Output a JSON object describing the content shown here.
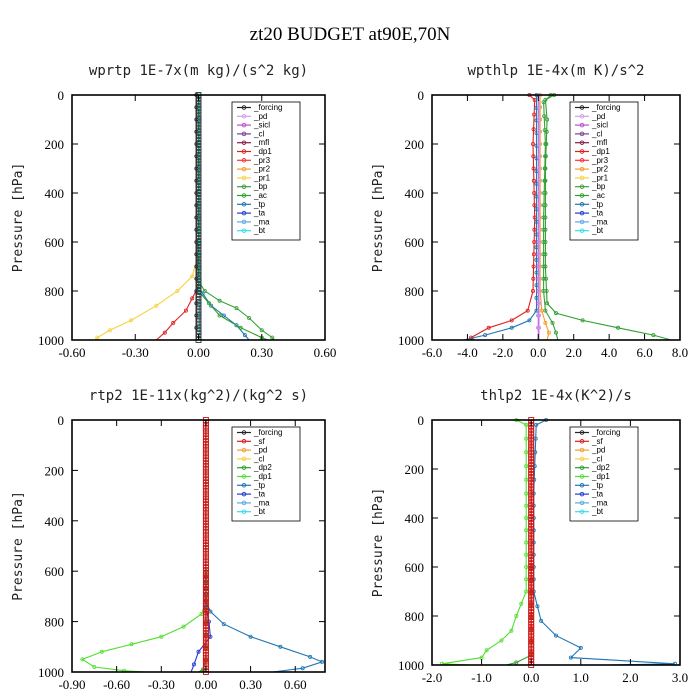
{
  "figure_title": "zt20  BUDGET at90E,70N",
  "colors": {
    "forcing": "#222222",
    "pd": "#d4a0e8",
    "sicl": "#b94fd0",
    "cl": "#7a3e9a",
    "mfl": "#8b1a4a",
    "dp1": "#e02020",
    "pr3": "#ff3333",
    "pr2": "#f39c2b",
    "pr1": "#f5d142",
    "bp": "#3aa03a",
    "ac": "#2ca02c",
    "tp": "#1f77b4",
    "ta": "#1f3ccf",
    "ma": "#5aa9e6",
    "bt": "#33ddee",
    "sf": "#e41a1c",
    "dp2": "#2ca02c",
    "dp1g": "#55dd33",
    "redline": "#e02020"
  },
  "chart_data": [
    {
      "type": "line",
      "title": "wprtp  1E-7x(m kg)/(s^2 kg)",
      "ylabel": "Pressure [hPa]",
      "xlim": [
        -0.6,
        0.6
      ],
      "ylim": [
        1000,
        0
      ],
      "xticks": [
        "-0.60",
        "-0.30",
        "0.00",
        "0.30",
        "0.60"
      ],
      "xtick_values": [
        -0.6,
        -0.3,
        0.0,
        0.3,
        0.6
      ],
      "yticks": [
        "0",
        "200",
        "400",
        "600",
        "800",
        "1000"
      ],
      "ytick_values": [
        0,
        200,
        400,
        600,
        800,
        1000
      ],
      "legend": [
        "_forcing",
        "_pd",
        "_sicl",
        "_cl",
        "_mfl",
        "_dp1",
        "_pr3",
        "_pr2",
        "_pr1",
        "_bp",
        "_ac",
        "_tp",
        "_ta",
        "_ma",
        "_bt"
      ],
      "legend_colors": [
        "forcing",
        "pd",
        "sicl",
        "cl",
        "mfl",
        "dp1",
        "pr3",
        "pr2",
        "pr1",
        "bp",
        "ac",
        "tp",
        "ta",
        "ma",
        "bt"
      ],
      "series": [
        {
          "name": "_pr1",
          "color": "pr1",
          "points": [
            [
              0,
              0
            ],
            [
              0,
              650
            ],
            [
              -0.03,
              740
            ],
            [
              -0.1,
              800
            ],
            [
              -0.2,
              860
            ],
            [
              -0.32,
              920
            ],
            [
              -0.42,
              960
            ],
            [
              -0.48,
              990
            ],
            [
              -0.49,
              1000
            ]
          ]
        },
        {
          "name": "_dp1",
          "color": "dp1",
          "points": [
            [
              0,
              0
            ],
            [
              0,
              780
            ],
            [
              -0.03,
              830
            ],
            [
              -0.06,
              880
            ],
            [
              -0.12,
              930
            ],
            [
              -0.16,
              970
            ],
            [
              -0.2,
              1000
            ]
          ]
        },
        {
          "name": "_bp",
          "color": "bp",
          "points": [
            [
              0,
              0
            ],
            [
              0,
              760
            ],
            [
              0.03,
              800
            ],
            [
              0.1,
              840
            ],
            [
              0.18,
              870
            ],
            [
              0.24,
              910
            ],
            [
              0.3,
              960
            ],
            [
              0.35,
              990
            ],
            [
              0.36,
              1000
            ]
          ]
        },
        {
          "name": "_tp",
          "color": "tp",
          "points": [
            [
              0,
              0
            ],
            [
              0,
              780
            ],
            [
              0.02,
              810
            ],
            [
              0.06,
              860
            ],
            [
              0.12,
              900
            ],
            [
              0.18,
              940
            ],
            [
              0.22,
              980
            ],
            [
              0.24,
              1000
            ]
          ]
        },
        {
          "name": "_ac",
          "color": "ac",
          "points": [
            [
              0,
              0
            ],
            [
              0,
              800
            ],
            [
              0.05,
              850
            ],
            [
              0.1,
              900
            ],
            [
              0.2,
              950
            ],
            [
              0.3,
              990
            ],
            [
              0.33,
              1000
            ]
          ]
        },
        {
          "name": "_forcing",
          "color": "forcing",
          "points": [
            [
              -0.01,
              0
            ],
            [
              -0.01,
              1000
            ]
          ]
        },
        {
          "name": "_bt",
          "color": "bt",
          "points": [
            [
              0.005,
              0
            ],
            [
              0.005,
              1000
            ]
          ]
        }
      ],
      "central_markers": true
    },
    {
      "type": "line",
      "title": "wpthlp  1E-4x(m K)/s^2",
      "ylabel": "Pressure [hPa]",
      "xlim": [
        -6.0,
        8.0
      ],
      "ylim": [
        1000,
        0
      ],
      "xticks": [
        "-6.0",
        "-4.0",
        "-2.0",
        "0.0",
        "2.0",
        "4.0",
        "6.0",
        "8.0"
      ],
      "xtick_values": [
        -6,
        -4,
        -2,
        0,
        2,
        4,
        6,
        8
      ],
      "yticks": [
        "0",
        "200",
        "400",
        "600",
        "800",
        "1000"
      ],
      "ytick_values": [
        0,
        200,
        400,
        600,
        800,
        1000
      ],
      "legend": [
        "_forcing",
        "_pd",
        "_sicl",
        "_cl",
        "_mfl",
        "_dp1",
        "_pr3",
        "_pr2",
        "_pr1",
        "_bp",
        "_ac",
        "_tp",
        "_ta",
        "_ma",
        "_bt"
      ],
      "legend_colors": [
        "forcing",
        "pd",
        "sicl",
        "cl",
        "mfl",
        "dp1",
        "pr3",
        "pr2",
        "pr1",
        "bp",
        "ac",
        "tp",
        "ta",
        "ma",
        "bt"
      ],
      "series": [
        {
          "name": "_ac",
          "color": "ac",
          "points": [
            [
              0.9,
              0
            ],
            [
              0.4,
              20
            ],
            [
              0.5,
              100
            ],
            [
              0.4,
              300
            ],
            [
              0.4,
              500
            ],
            [
              0.4,
              700
            ],
            [
              0.5,
              850
            ],
            [
              1.0,
              890
            ],
            [
              2.5,
              920
            ],
            [
              4.5,
              950
            ],
            [
              6.5,
              980
            ],
            [
              7.5,
              1000
            ]
          ]
        },
        {
          "name": "_bp",
          "color": "bp",
          "points": [
            [
              0.7,
              0
            ],
            [
              0.3,
              30
            ],
            [
              0.4,
              200
            ],
            [
              0.3,
              500
            ],
            [
              0.3,
              800
            ],
            [
              0.4,
              880
            ],
            [
              0.8,
              930
            ],
            [
              1.0,
              970
            ],
            [
              1.1,
              1000
            ]
          ]
        },
        {
          "name": "_pr2",
          "color": "pr2",
          "points": [
            [
              0.1,
              0
            ],
            [
              0.1,
              800
            ],
            [
              0.2,
              880
            ],
            [
              0.4,
              930
            ],
            [
              0.6,
              970
            ],
            [
              0.5,
              1000
            ]
          ]
        },
        {
          "name": "_dp1",
          "color": "dp1",
          "points": [
            [
              -0.5,
              0
            ],
            [
              -0.2,
              20
            ],
            [
              -0.3,
              200
            ],
            [
              -0.2,
              500
            ],
            [
              -0.3,
              800
            ],
            [
              -0.6,
              880
            ],
            [
              -1.5,
              920
            ],
            [
              -2.8,
              950
            ],
            [
              -3.8,
              990
            ],
            [
              -3.6,
              1000
            ]
          ]
        },
        {
          "name": "_tp",
          "color": "tp",
          "points": [
            [
              -0.1,
              0
            ],
            [
              -0.1,
              880
            ],
            [
              -0.5,
              920
            ],
            [
              -1.5,
              950
            ],
            [
              -3.0,
              980
            ],
            [
              -4.2,
              1000
            ]
          ]
        },
        {
          "name": "_sicl",
          "color": "sicl",
          "points": [
            [
              0,
              0
            ],
            [
              0,
              1000
            ]
          ]
        },
        {
          "name": "_pd",
          "color": "pd",
          "points": [
            [
              0.05,
              0
            ],
            [
              0.05,
              1000
            ]
          ]
        }
      ],
      "central_markers": false
    },
    {
      "type": "line",
      "title": "rtp2  1E-11x(kg^2)/(kg^2 s)",
      "ylabel": "Pressure [hPa]",
      "xlim": [
        -0.9,
        0.8
      ],
      "ylim": [
        1000,
        0
      ],
      "xticks": [
        "-0.90",
        "-0.60",
        "-0.30",
        "0.00",
        "0.30",
        "0.60"
      ],
      "xtick_values": [
        -0.9,
        -0.6,
        -0.3,
        0.0,
        0.3,
        0.6
      ],
      "yticks": [
        "0",
        "200",
        "400",
        "600",
        "800",
        "1000"
      ],
      "ytick_values": [
        0,
        200,
        400,
        600,
        800,
        1000
      ],
      "legend": [
        "_forcing",
        "_sf",
        "_pd",
        "_cl",
        "_dp2",
        "_dp1",
        "_tp",
        "_ta",
        "_ma",
        "_bt"
      ],
      "legend_colors": [
        "forcing",
        "sf",
        "pr2",
        "pr1",
        "dp2",
        "dp1g",
        "tp",
        "ta",
        "ma",
        "bt"
      ],
      "series": [
        {
          "name": "_dp1",
          "color": "dp1g",
          "points": [
            [
              0,
              0
            ],
            [
              0,
              720
            ],
            [
              -0.03,
              770
            ],
            [
              -0.15,
              820
            ],
            [
              -0.3,
              860
            ],
            [
              -0.5,
              890
            ],
            [
              -0.7,
              920
            ],
            [
              -0.83,
              950
            ],
            [
              -0.75,
              980
            ],
            [
              -0.55,
              995
            ],
            [
              -0.4,
              1000
            ]
          ]
        },
        {
          "name": "_tp",
          "color": "tp",
          "points": [
            [
              0,
              0
            ],
            [
              0,
              720
            ],
            [
              0.03,
              760
            ],
            [
              0.12,
              810
            ],
            [
              0.3,
              860
            ],
            [
              0.5,
              900
            ],
            [
              0.7,
              940
            ],
            [
              0.78,
              960
            ],
            [
              0.65,
              985
            ],
            [
              0.45,
              1000
            ]
          ]
        },
        {
          "name": "_ta",
          "color": "ta",
          "points": [
            [
              0,
              0
            ],
            [
              0,
              740
            ],
            [
              0.02,
              800
            ],
            [
              0.03,
              860
            ],
            [
              -0.05,
              920
            ],
            [
              -0.08,
              970
            ],
            [
              -0.1,
              1000
            ]
          ]
        },
        {
          "name": "_dp2",
          "color": "dp2",
          "points": [
            [
              0,
              0
            ],
            [
              0,
              950
            ],
            [
              -0.02,
              990
            ],
            [
              -0.05,
              1000
            ]
          ]
        },
        {
          "name": "_forcing",
          "color": "redline",
          "points": [
            [
              0,
              0
            ],
            [
              0,
              1000
            ]
          ]
        }
      ],
      "central_markers": true
    },
    {
      "type": "line",
      "title": "thlp2  1E-4x(K^2)/s",
      "ylabel": "Pressure [hPa]",
      "xlim": [
        -2.0,
        3.0
      ],
      "ylim": [
        1000,
        0
      ],
      "xticks": [
        "-2.0",
        "-1.0",
        "0.0",
        "1.0",
        "2.0",
        "3.0"
      ],
      "xtick_values": [
        -2,
        -1,
        0,
        1,
        2,
        3
      ],
      "yticks": [
        "0",
        "200",
        "400",
        "600",
        "800",
        "1000"
      ],
      "ytick_values": [
        0,
        200,
        400,
        600,
        800,
        1000
      ],
      "legend": [
        "_forcing",
        "_sf",
        "_pd",
        "_cl",
        "_dp2",
        "_dp1",
        "_tp",
        "_ta",
        "_ma",
        "_bt"
      ],
      "legend_colors": [
        "forcing",
        "sf",
        "pr2",
        "pr1",
        "dp2",
        "dp1g",
        "tp",
        "ta",
        "ma",
        "bt"
      ],
      "series": [
        {
          "name": "_dp1",
          "color": "dp1g",
          "points": [
            [
              -0.3,
              0
            ],
            [
              -0.1,
              20
            ],
            [
              -0.1,
              300
            ],
            [
              -0.1,
              700
            ],
            [
              -0.3,
              800
            ],
            [
              -0.4,
              860
            ],
            [
              -0.6,
              900
            ],
            [
              -0.9,
              940
            ],
            [
              -1.0,
              970
            ],
            [
              -1.8,
              995
            ],
            [
              -1.2,
              1000
            ]
          ]
        },
        {
          "name": "_tp",
          "color": "tp",
          "points": [
            [
              0.3,
              0
            ],
            [
              0.1,
              20
            ],
            [
              0.05,
              300
            ],
            [
              0.05,
              700
            ],
            [
              0.2,
              820
            ],
            [
              0.5,
              880
            ],
            [
              1.0,
              930
            ],
            [
              0.8,
              970
            ],
            [
              2.9,
              995
            ],
            [
              1.5,
              1000
            ]
          ]
        },
        {
          "name": "_dp2",
          "color": "dp2",
          "points": [
            [
              0,
              0
            ],
            [
              0,
              960
            ],
            [
              -0.3,
              990
            ],
            [
              -0.5,
              1000
            ]
          ]
        },
        {
          "name": "_forcing",
          "color": "redline",
          "points": [
            [
              0,
              0
            ],
            [
              0,
              1000
            ]
          ]
        }
      ],
      "central_markers": true
    }
  ]
}
